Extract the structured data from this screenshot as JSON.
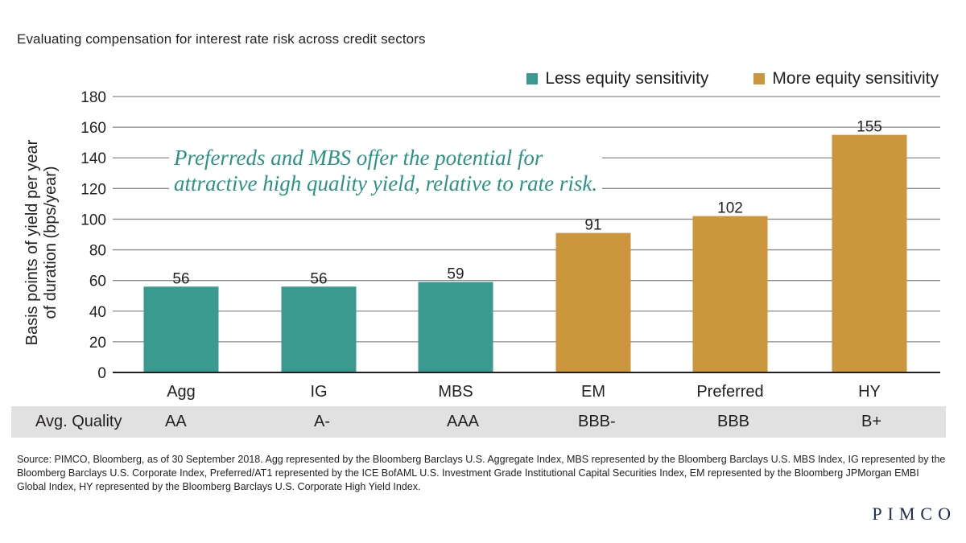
{
  "title": "Evaluating compensation for interest rate risk across credit sectors",
  "legend": [
    {
      "label": "Less equity sensitivity",
      "color": "#3a9a90"
    },
    {
      "label": "More equity sensitivity",
      "color": "#cc963c"
    }
  ],
  "annotation": {
    "line1": "Preferreds and MBS offer the potential for",
    "line2": "attractive high quality yield, relative to rate risk.",
    "color": "#2a9385"
  },
  "quality": {
    "label": "Avg. Quality",
    "values": [
      "AA",
      "A-",
      "AAA",
      "BBB-",
      "BBB",
      "B+"
    ]
  },
  "source": "Source: PIMCO, Bloomberg, as of 30 September 2018. Agg represented by the Bloomberg Barclays U.S. Aggregate Index, MBS represented by the Bloomberg Barclays U.S. MBS Index, IG represented by the Bloomberg Barclays U.S. Corporate Index, Preferred/AT1 represented by the ICE BofAML U.S. Investment Grade Institutional Capital Securities Index, EM represented by the Bloomberg JPMorgan EMBI Global Index, HY represented by the Bloomberg Barclays U.S. Corporate High Yield Index.",
  "logo": "PIMCO",
  "chart_data": {
    "type": "bar",
    "title": "Evaluating compensation for interest rate risk across credit sectors",
    "xlabel": "",
    "ylabel_lines": [
      "Basis points of yield per year",
      "of duration (bps/year)"
    ],
    "categories": [
      "Agg",
      "IG",
      "MBS",
      "EM",
      "Preferred",
      "HY"
    ],
    "values": [
      56,
      56,
      59,
      91,
      102,
      155
    ],
    "groups": [
      "Less equity sensitivity",
      "Less equity sensitivity",
      "Less equity sensitivity",
      "More equity sensitivity",
      "More equity sensitivity",
      "More equity sensitivity"
    ],
    "group_colors": {
      "Less equity sensitivity": "#3a9a90",
      "More equity sensitivity": "#cc963c"
    },
    "ylim": [
      0,
      180
    ],
    "yticks": [
      0,
      20,
      40,
      60,
      80,
      100,
      120,
      140,
      160,
      180
    ],
    "grid": true,
    "legend_position": "top-right"
  }
}
